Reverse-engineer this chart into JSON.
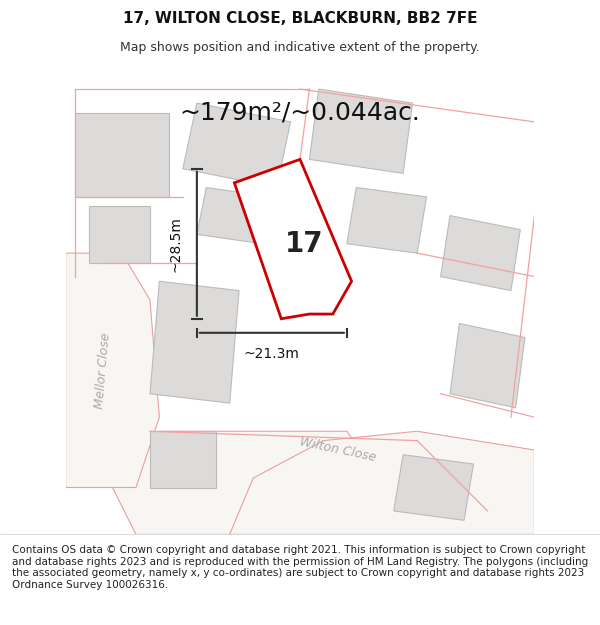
{
  "title_line1": "17, WILTON CLOSE, BLACKBURN, BB2 7FE",
  "title_line2": "Map shows position and indicative extent of the property.",
  "area_text": "~179m²/~0.044ac.",
  "dim_vertical": "~28.5m",
  "dim_horizontal": "~21.3m",
  "label_number": "17",
  "road_label_1": "Mellor Close",
  "road_label_2": "Wilton Close",
  "footer_text": "Contains OS data © Crown copyright and database right 2021. This information is subject to Crown copyright and database rights 2023 and is reproduced with the permission of HM Land Registry. The polygons (including the associated geometry, namely x, y co-ordinates) are subject to Crown copyright and database rights 2023 Ordnance Survey 100026316.",
  "bg_color": "#f5f4f2",
  "map_bg": "#f5f4f2",
  "building_fill": "#e0dedd",
  "building_edge": "#cccccc",
  "road_fill": "#ffffff",
  "plot_outline_color": "#cc0000",
  "plot_fill": "#ffffff",
  "dim_line_color": "#333333",
  "road_outline_color": "#ffaaaa",
  "header_bg": "#ffffff",
  "footer_bg": "#ffffff",
  "title_fontsize": 11,
  "subtitle_fontsize": 9,
  "area_fontsize": 18,
  "label_fontsize": 20,
  "dim_fontsize": 10,
  "road_fontsize": 9,
  "footer_fontsize": 7.5
}
